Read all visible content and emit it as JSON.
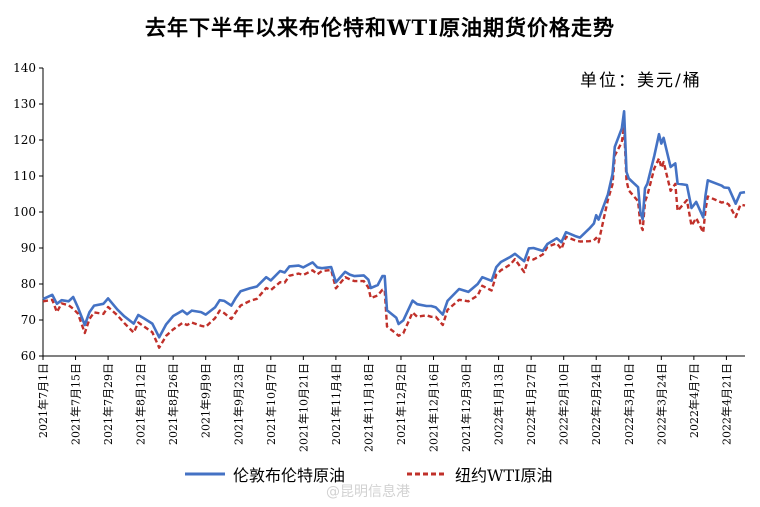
{
  "chart_data": {
    "type": "line",
    "title": "去年下半年以来布伦特和WTI原油期货价格走势",
    "unit": "单位：美元/桶",
    "ylim": [
      60,
      140
    ],
    "yticks": [
      60,
      70,
      80,
      90,
      100,
      110,
      120,
      130,
      140
    ],
    "xlim": [
      "2021-07-01",
      "2022-04-29"
    ],
    "xticks": [
      "2021年7月1日",
      "2021年7月15日",
      "2021年7月29日",
      "2021年8月12日",
      "2021年8月26日",
      "2021年9月9日",
      "2021年9月23日",
      "2021年10月7日",
      "2021年10月21日",
      "2021年11月4日",
      "2021年11月18日",
      "2021年12月2日",
      "2021年12月16日",
      "2021年12月30日",
      "2022年1月13日",
      "2022年1月27日",
      "2022年2月10日",
      "2022年2月24日",
      "2022年3月10日",
      "2022年3月24日",
      "2022年4月7日",
      "2022年4月21日"
    ],
    "series": [
      {
        "name": "伦敦布伦特原油",
        "color": "#4472c4",
        "style": "solid",
        "points": [
          [
            "2021-07-01",
            75.8
          ],
          [
            "2021-07-05",
            77.0
          ],
          [
            "2021-07-07",
            74.5
          ],
          [
            "2021-07-09",
            75.5
          ],
          [
            "2021-07-12",
            75.2
          ],
          [
            "2021-07-14",
            76.4
          ],
          [
            "2021-07-16",
            73.5
          ],
          [
            "2021-07-19",
            68.6
          ],
          [
            "2021-07-21",
            72.2
          ],
          [
            "2021-07-23",
            74.0
          ],
          [
            "2021-07-27",
            74.5
          ],
          [
            "2021-07-29",
            76.0
          ],
          [
            "2021-08-02",
            72.9
          ],
          [
            "2021-08-05",
            71.0
          ],
          [
            "2021-08-09",
            69.0
          ],
          [
            "2021-08-11",
            71.4
          ],
          [
            "2021-08-13",
            70.6
          ],
          [
            "2021-08-17",
            69.0
          ],
          [
            "2021-08-20",
            65.2
          ],
          [
            "2021-08-23",
            68.8
          ],
          [
            "2021-08-26",
            71.1
          ],
          [
            "2021-08-30",
            72.6
          ],
          [
            "2021-09-01",
            71.6
          ],
          [
            "2021-09-03",
            72.6
          ],
          [
            "2021-09-07",
            72.2
          ],
          [
            "2021-09-09",
            71.5
          ],
          [
            "2021-09-13",
            73.5
          ],
          [
            "2021-09-15",
            75.5
          ],
          [
            "2021-09-17",
            75.3
          ],
          [
            "2021-09-20",
            74.0
          ],
          [
            "2021-09-22",
            76.2
          ],
          [
            "2021-09-24",
            78.0
          ],
          [
            "2021-09-28",
            78.8
          ],
          [
            "2021-10-01",
            79.3
          ],
          [
            "2021-10-05",
            81.9
          ],
          [
            "2021-10-07",
            81.0
          ],
          [
            "2021-10-11",
            83.6
          ],
          [
            "2021-10-13",
            83.2
          ],
          [
            "2021-10-15",
            84.9
          ],
          [
            "2021-10-19",
            85.1
          ],
          [
            "2021-10-21",
            84.6
          ],
          [
            "2021-10-25",
            86.0
          ],
          [
            "2021-10-27",
            84.6
          ],
          [
            "2021-10-29",
            84.4
          ],
          [
            "2021-11-02",
            84.7
          ],
          [
            "2021-11-04",
            80.5
          ],
          [
            "2021-11-08",
            83.4
          ],
          [
            "2021-11-10",
            82.6
          ],
          [
            "2021-11-12",
            82.2
          ],
          [
            "2021-11-16",
            82.4
          ],
          [
            "2021-11-18",
            81.2
          ],
          [
            "2021-11-19",
            78.9
          ],
          [
            "2021-11-22",
            79.7
          ],
          [
            "2021-11-24",
            82.2
          ],
          [
            "2021-11-25",
            82.2
          ],
          [
            "2021-11-26",
            72.7
          ],
          [
            "2021-11-30",
            70.6
          ],
          [
            "2021-12-01",
            68.9
          ],
          [
            "2021-12-03",
            69.9
          ],
          [
            "2021-12-07",
            75.4
          ],
          [
            "2021-12-09",
            74.4
          ],
          [
            "2021-12-13",
            73.9
          ],
          [
            "2021-12-15",
            73.9
          ],
          [
            "2021-12-17",
            73.5
          ],
          [
            "2021-12-20",
            71.5
          ],
          [
            "2021-12-22",
            75.3
          ],
          [
            "2021-12-27",
            78.6
          ],
          [
            "2021-12-31",
            77.8
          ],
          [
            "2022-01-04",
            80.0
          ],
          [
            "2022-01-06",
            81.9
          ],
          [
            "2022-01-10",
            80.9
          ],
          [
            "2022-01-12",
            84.7
          ],
          [
            "2022-01-14",
            86.1
          ],
          [
            "2022-01-18",
            87.5
          ],
          [
            "2022-01-20",
            88.4
          ],
          [
            "2022-01-24",
            86.3
          ],
          [
            "2022-01-26",
            89.9
          ],
          [
            "2022-01-28",
            90.0
          ],
          [
            "2022-02-01",
            89.2
          ],
          [
            "2022-02-03",
            91.1
          ],
          [
            "2022-02-07",
            92.7
          ],
          [
            "2022-02-09",
            91.6
          ],
          [
            "2022-02-11",
            94.4
          ],
          [
            "2022-02-15",
            93.3
          ],
          [
            "2022-02-17",
            92.9
          ],
          [
            "2022-02-21",
            95.4
          ],
          [
            "2022-02-23",
            96.8
          ],
          [
            "2022-02-24",
            99.1
          ],
          [
            "2022-02-25",
            97.9
          ],
          [
            "2022-03-01",
            104.9
          ],
          [
            "2022-03-03",
            110.5
          ],
          [
            "2022-03-04",
            118.1
          ],
          [
            "2022-03-07",
            123.2
          ],
          [
            "2022-03-08",
            127.98
          ],
          [
            "2022-03-09",
            111.1
          ],
          [
            "2022-03-10",
            109.3
          ],
          [
            "2022-03-14",
            106.9
          ],
          [
            "2022-03-15",
            99.9
          ],
          [
            "2022-03-16",
            98.0
          ],
          [
            "2022-03-17",
            106.6
          ],
          [
            "2022-03-18",
            107.9
          ],
          [
            "2022-03-21",
            115.6
          ],
          [
            "2022-03-23",
            121.6
          ],
          [
            "2022-03-24",
            119.0
          ],
          [
            "2022-03-25",
            120.6
          ],
          [
            "2022-03-28",
            112.5
          ],
          [
            "2022-03-30",
            113.5
          ],
          [
            "2022-03-31",
            107.9
          ],
          [
            "2022-04-04",
            107.5
          ],
          [
            "2022-04-06",
            101.1
          ],
          [
            "2022-04-08",
            102.8
          ],
          [
            "2022-04-11",
            98.5
          ],
          [
            "2022-04-12",
            104.6
          ],
          [
            "2022-04-13",
            108.8
          ],
          [
            "2022-04-19",
            107.3
          ],
          [
            "2022-04-20",
            106.8
          ],
          [
            "2022-04-22",
            106.7
          ],
          [
            "2022-04-25",
            102.3
          ],
          [
            "2022-04-27",
            105.3
          ],
          [
            "2022-04-29",
            105.5
          ]
        ]
      },
      {
        "name": "纽约WTI原油",
        "color": "#c0302a",
        "style": "dashed",
        "points": [
          [
            "2021-07-01",
            75.2
          ],
          [
            "2021-07-05",
            75.6
          ],
          [
            "2021-07-07",
            72.2
          ],
          [
            "2021-07-09",
            74.6
          ],
          [
            "2021-07-12",
            74.1
          ],
          [
            "2021-07-14",
            73.1
          ],
          [
            "2021-07-16",
            71.8
          ],
          [
            "2021-07-19",
            66.4
          ],
          [
            "2021-07-21",
            70.3
          ],
          [
            "2021-07-23",
            72.1
          ],
          [
            "2021-07-27",
            71.7
          ],
          [
            "2021-07-29",
            73.6
          ],
          [
            "2021-08-02",
            71.3
          ],
          [
            "2021-08-05",
            69.1
          ],
          [
            "2021-08-09",
            66.5
          ],
          [
            "2021-08-11",
            69.3
          ],
          [
            "2021-08-13",
            68.4
          ],
          [
            "2021-08-17",
            66.6
          ],
          [
            "2021-08-20",
            62.3
          ],
          [
            "2021-08-23",
            65.6
          ],
          [
            "2021-08-26",
            67.4
          ],
          [
            "2021-08-30",
            69.2
          ],
          [
            "2021-09-01",
            68.6
          ],
          [
            "2021-09-03",
            69.3
          ],
          [
            "2021-09-07",
            68.4
          ],
          [
            "2021-09-09",
            68.1
          ],
          [
            "2021-09-13",
            70.5
          ],
          [
            "2021-09-15",
            72.6
          ],
          [
            "2021-09-17",
            71.9
          ],
          [
            "2021-09-20",
            70.3
          ],
          [
            "2021-09-22",
            72.2
          ],
          [
            "2021-09-24",
            74.0
          ],
          [
            "2021-09-28",
            75.3
          ],
          [
            "2021-10-01",
            75.9
          ],
          [
            "2021-10-05",
            78.9
          ],
          [
            "2021-10-07",
            78.3
          ],
          [
            "2021-10-11",
            80.5
          ],
          [
            "2021-10-13",
            80.4
          ],
          [
            "2021-10-15",
            82.3
          ],
          [
            "2021-10-19",
            82.9
          ],
          [
            "2021-10-21",
            82.5
          ],
          [
            "2021-10-25",
            83.8
          ],
          [
            "2021-10-27",
            82.7
          ],
          [
            "2021-10-29",
            83.6
          ],
          [
            "2021-11-02",
            83.9
          ],
          [
            "2021-11-04",
            78.8
          ],
          [
            "2021-11-08",
            81.9
          ],
          [
            "2021-11-10",
            81.3
          ],
          [
            "2021-11-12",
            80.8
          ],
          [
            "2021-11-16",
            80.8
          ],
          [
            "2021-11-18",
            79.0
          ],
          [
            "2021-11-19",
            76.1
          ],
          [
            "2021-11-22",
            76.8
          ],
          [
            "2021-11-24",
            78.4
          ],
          [
            "2021-11-25",
            78.4
          ],
          [
            "2021-11-26",
            68.2
          ],
          [
            "2021-11-30",
            66.2
          ],
          [
            "2021-12-01",
            65.6
          ],
          [
            "2021-12-03",
            66.3
          ],
          [
            "2021-12-07",
            72.1
          ],
          [
            "2021-12-09",
            70.9
          ],
          [
            "2021-12-13",
            71.3
          ],
          [
            "2021-12-15",
            70.9
          ],
          [
            "2021-12-17",
            70.9
          ],
          [
            "2021-12-20",
            68.6
          ],
          [
            "2021-12-22",
            72.8
          ],
          [
            "2021-12-27",
            75.6
          ],
          [
            "2021-12-31",
            75.2
          ],
          [
            "2022-01-04",
            76.8
          ],
          [
            "2022-01-06",
            79.5
          ],
          [
            "2022-01-10",
            78.2
          ],
          [
            "2022-01-12",
            82.6
          ],
          [
            "2022-01-14",
            83.8
          ],
          [
            "2022-01-18",
            85.4
          ],
          [
            "2022-01-20",
            86.9
          ],
          [
            "2022-01-24",
            83.3
          ],
          [
            "2022-01-26",
            87.4
          ],
          [
            "2022-01-28",
            86.8
          ],
          [
            "2022-02-01",
            88.2
          ],
          [
            "2022-02-03",
            90.3
          ],
          [
            "2022-02-07",
            91.3
          ],
          [
            "2022-02-09",
            89.7
          ],
          [
            "2022-02-11",
            93.1
          ],
          [
            "2022-02-15",
            92.1
          ],
          [
            "2022-02-17",
            91.8
          ],
          [
            "2022-02-21",
            91.9
          ],
          [
            "2022-02-23",
            92.1
          ],
          [
            "2022-02-24",
            92.8
          ],
          [
            "2022-02-25",
            91.6
          ],
          [
            "2022-03-01",
            103.4
          ],
          [
            "2022-03-03",
            107.7
          ],
          [
            "2022-03-04",
            115.7
          ],
          [
            "2022-03-07",
            119.4
          ],
          [
            "2022-03-08",
            123.7
          ],
          [
            "2022-03-09",
            108.7
          ],
          [
            "2022-03-10",
            106.0
          ],
          [
            "2022-03-14",
            103.0
          ],
          [
            "2022-03-15",
            96.4
          ],
          [
            "2022-03-16",
            95.0
          ],
          [
            "2022-03-17",
            102.9
          ],
          [
            "2022-03-18",
            104.7
          ],
          [
            "2022-03-21",
            112.1
          ],
          [
            "2022-03-23",
            114.9
          ],
          [
            "2022-03-24",
            112.3
          ],
          [
            "2022-03-25",
            113.9
          ],
          [
            "2022-03-28",
            105.9
          ],
          [
            "2022-03-30",
            107.8
          ],
          [
            "2022-03-31",
            100.3
          ],
          [
            "2022-04-04",
            103.3
          ],
          [
            "2022-04-06",
            96.2
          ],
          [
            "2022-04-08",
            98.3
          ],
          [
            "2022-04-11",
            94.3
          ],
          [
            "2022-04-12",
            100.6
          ],
          [
            "2022-04-13",
            104.3
          ],
          [
            "2022-04-19",
            102.6
          ],
          [
            "2022-04-20",
            102.8
          ],
          [
            "2022-04-22",
            102.1
          ],
          [
            "2022-04-25",
            98.6
          ],
          [
            "2022-04-27",
            102.0
          ],
          [
            "2022-04-29",
            101.8
          ]
        ]
      }
    ]
  },
  "watermark": "@昆明信息港"
}
